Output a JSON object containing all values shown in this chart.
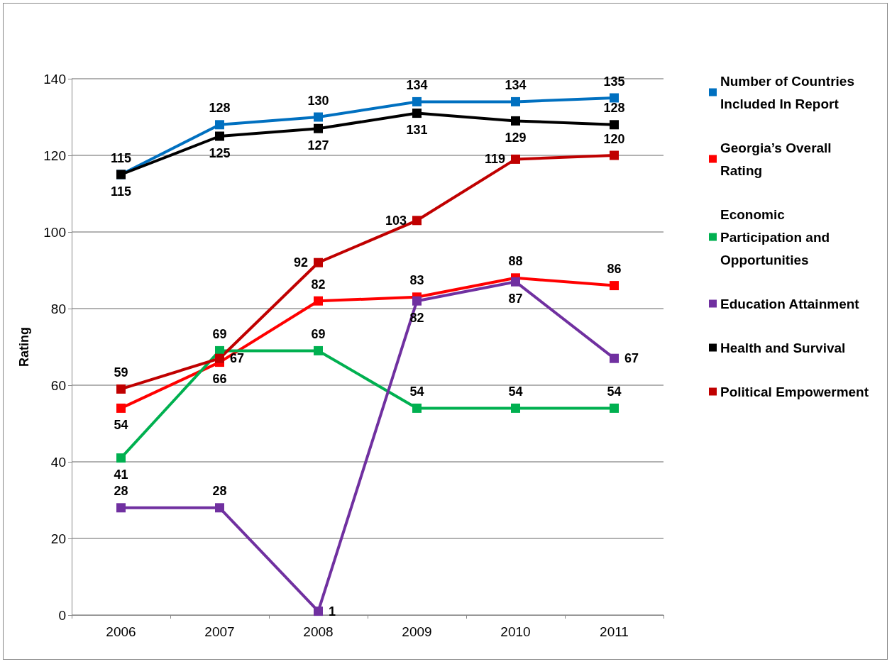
{
  "chart_data": {
    "type": "line",
    "ylabel": "Rating",
    "categories": [
      "2006",
      "2007",
      "2008",
      "2009",
      "2010",
      "2011"
    ],
    "series": [
      {
        "name": "Number of Countries Included In Report",
        "color": "#0070c0",
        "values": [
          115,
          128,
          130,
          134,
          134,
          135
        ]
      },
      {
        "name": "Georgia’s Overall Rating",
        "color": "#ff0000",
        "values": [
          54,
          66,
          82,
          83,
          88,
          86
        ]
      },
      {
        "name": "Economic Participation and Opportunities",
        "color": "#00b050",
        "values": [
          41,
          69,
          69,
          54,
          54,
          54
        ]
      },
      {
        "name": "Education Attainment",
        "color": "#7030a0",
        "values": [
          28,
          28,
          1,
          82,
          87,
          67
        ]
      },
      {
        "name": "Health and Survival",
        "color": "#000000",
        "values": [
          115,
          125,
          127,
          131,
          129,
          128
        ]
      },
      {
        "name": "Political Empowerment",
        "color": "#c00000",
        "values": [
          59,
          67,
          92,
          103,
          119,
          120
        ]
      }
    ],
    "ylim": [
      0,
      140
    ],
    "yticks": [
      0,
      20,
      40,
      60,
      80,
      100,
      120,
      140
    ],
    "grid": "y",
    "legend": "right",
    "marker": "square",
    "line_style": "solid",
    "data_labels": true
  }
}
